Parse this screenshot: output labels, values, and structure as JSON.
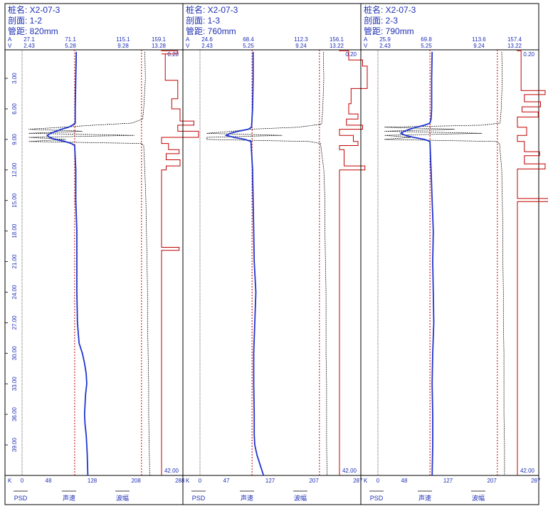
{
  "labels": {
    "pile_prefix": "桩名:",
    "section_prefix": "剖面:",
    "spacing_prefix": "管距:",
    "amp_axis_letter": "A",
    "vel_axis_letter": "V",
    "k_letter": "K",
    "legend_psd": "PSD",
    "legend_velocity": "声速",
    "legend_amplitude": "波幅"
  },
  "depth_ticks": [
    "3.00",
    "6.00",
    "9.00",
    "12.00",
    "15.00",
    "18.00",
    "21.00",
    "24.00",
    "27.00",
    "30.00",
    "33.00",
    "36.00",
    "39.00"
  ],
  "depth_ticks_value": [
    3,
    6,
    9,
    12,
    15,
    18,
    21,
    24,
    27,
    30,
    33,
    36,
    39
  ],
  "colors": {
    "velocity": "#1f35d0",
    "amplitude": "#000000",
    "psd": "#c00000",
    "critical": "#c00000",
    "text": "#1e2fb4",
    "frame": "#000000"
  },
  "chart_data": [
    {
      "type": "line",
      "pile": "X2-07-3",
      "section": "1-2",
      "spacing": "820mm",
      "amp_ticks": [
        "27.1",
        "71.1",
        "115.1",
        "159.1"
      ],
      "vel_ticks": [
        "2.43",
        "5.28",
        "9.28",
        "13.28"
      ],
      "k_ticks": [
        "0",
        "48",
        "128",
        "208",
        "288"
      ],
      "top_depth": "0.20",
      "bottom_depth": "42.00",
      "depth_range": [
        0.2,
        42.0
      ],
      "velocity_critical_k": 96,
      "amplitude_critical_k": 218,
      "velocity": [
        [
          0.4,
          99
        ],
        [
          3,
          98
        ],
        [
          6,
          97
        ],
        [
          7.4,
          97
        ],
        [
          7.6,
          92
        ],
        [
          7.8,
          85
        ],
        [
          8.0,
          72
        ],
        [
          8.2,
          62
        ],
        [
          8.4,
          52
        ],
        [
          8.6,
          46
        ],
        [
          8.8,
          50
        ],
        [
          9.0,
          60
        ],
        [
          9.2,
          78
        ],
        [
          9.4,
          90
        ],
        [
          9.6,
          96
        ],
        [
          12,
          98
        ],
        [
          15,
          98
        ],
        [
          18,
          100
        ],
        [
          21,
          100
        ],
        [
          24,
          100
        ],
        [
          27,
          101
        ],
        [
          29,
          104
        ],
        [
          30,
          110
        ],
        [
          31,
          114
        ],
        [
          32,
          117
        ],
        [
          33,
          118
        ],
        [
          34,
          116
        ],
        [
          35,
          115
        ],
        [
          36,
          114
        ],
        [
          37,
          115
        ],
        [
          38,
          117
        ],
        [
          39,
          118
        ],
        [
          40,
          119
        ],
        [
          42,
          120
        ]
      ],
      "amplitude": [
        [
          0.4,
          224
        ],
        [
          3,
          225
        ],
        [
          6,
          222
        ],
        [
          7,
          220
        ],
        [
          7.4,
          200
        ],
        [
          7.6,
          130
        ],
        [
          7.8,
          75
        ],
        [
          8.0,
          12
        ],
        [
          8.2,
          110
        ],
        [
          8.4,
          12
        ],
        [
          8.6,
          205
        ],
        [
          8.8,
          12
        ],
        [
          9.0,
          80
        ],
        [
          9.2,
          12
        ],
        [
          9.4,
          218
        ],
        [
          9.6,
          222
        ],
        [
          12,
          224
        ],
        [
          15,
          226
        ],
        [
          18,
          227
        ],
        [
          21,
          228
        ],
        [
          24,
          229
        ],
        [
          27,
          229
        ],
        [
          30,
          230
        ],
        [
          33,
          231
        ],
        [
          36,
          231
        ],
        [
          39,
          232
        ],
        [
          42,
          233
        ]
      ],
      "psd": [
        [
          0.2,
          0
        ],
        [
          0.3,
          0
        ],
        [
          0.3,
          35
        ],
        [
          0.6,
          35
        ],
        [
          0.6,
          0
        ],
        [
          0.6,
          8
        ],
        [
          3.2,
          8
        ],
        [
          3.2,
          35
        ],
        [
          5.0,
          35
        ],
        [
          5.0,
          22
        ],
        [
          6.0,
          22
        ],
        [
          6.0,
          40
        ],
        [
          7.2,
          40
        ],
        [
          7.2,
          70
        ],
        [
          7.6,
          70
        ],
        [
          7.6,
          35
        ],
        [
          8.2,
          35
        ],
        [
          8.2,
          80
        ],
        [
          8.8,
          80
        ],
        [
          8.8,
          0
        ],
        [
          9.4,
          0
        ],
        [
          9.4,
          15
        ],
        [
          10.0,
          15
        ],
        [
          10.0,
          38
        ],
        [
          10.4,
          38
        ],
        [
          10.4,
          10
        ],
        [
          11.0,
          10
        ],
        [
          11.0,
          40
        ],
        [
          11.6,
          40
        ],
        [
          11.6,
          10
        ],
        [
          12.0,
          10
        ],
        [
          12.0,
          0
        ],
        [
          19.6,
          0
        ],
        [
          19.6,
          38
        ],
        [
          19.9,
          38
        ],
        [
          19.9,
          0
        ],
        [
          42,
          0
        ]
      ]
    },
    {
      "type": "line",
      "pile": "X2-07-3",
      "section": "1-3",
      "spacing": "760mm",
      "amp_ticks": [
        "24.6",
        "68.4",
        "112.3",
        "156.1"
      ],
      "vel_ticks": [
        "2.43",
        "5.25",
        "9.24",
        "13.22"
      ],
      "k_ticks": [
        "0",
        "47",
        "127",
        "207",
        "287"
      ],
      "top_depth": "0.20",
      "bottom_depth": "42.00",
      "depth_range": [
        0.2,
        42.0
      ],
      "velocity_critical_k": 95,
      "amplitude_critical_k": 218,
      "velocity": [
        [
          0.4,
          97
        ],
        [
          3,
          97
        ],
        [
          6,
          96
        ],
        [
          7.8,
          94
        ],
        [
          8.0,
          88
        ],
        [
          8.2,
          70
        ],
        [
          8.4,
          55
        ],
        [
          8.6,
          48
        ],
        [
          8.8,
          62
        ],
        [
          9.0,
          82
        ],
        [
          9.2,
          93
        ],
        [
          12,
          96
        ],
        [
          15,
          97
        ],
        [
          18,
          98
        ],
        [
          21,
          99
        ],
        [
          24,
          102
        ],
        [
          27,
          100
        ],
        [
          30,
          98
        ],
        [
          33,
          98
        ],
        [
          36,
          99
        ],
        [
          38,
          99
        ],
        [
          39,
          100
        ],
        [
          40,
          104
        ],
        [
          41,
          110
        ],
        [
          42,
          116
        ]
      ],
      "amplitude": [
        [
          0.4,
          225
        ],
        [
          3,
          226
        ],
        [
          6,
          224
        ],
        [
          7.5,
          222
        ],
        [
          7.8,
          180
        ],
        [
          8.0,
          90
        ],
        [
          8.2,
          60
        ],
        [
          8.4,
          12
        ],
        [
          8.6,
          150
        ],
        [
          8.8,
          12
        ],
        [
          9.0,
          12
        ],
        [
          9.2,
          200
        ],
        [
          9.4,
          220
        ],
        [
          12,
          226
        ],
        [
          15,
          228
        ],
        [
          18,
          228
        ],
        [
          21,
          229
        ],
        [
          24,
          230
        ],
        [
          27,
          230
        ],
        [
          30,
          230
        ],
        [
          33,
          231
        ],
        [
          36,
          231
        ],
        [
          39,
          231
        ],
        [
          42,
          232
        ]
      ],
      "psd": [
        [
          0.2,
          0
        ],
        [
          0.3,
          0
        ],
        [
          0.3,
          20
        ],
        [
          1.2,
          20
        ],
        [
          1.2,
          50
        ],
        [
          1.8,
          50
        ],
        [
          1.8,
          60
        ],
        [
          4.0,
          60
        ],
        [
          4.0,
          25
        ],
        [
          5.5,
          25
        ],
        [
          5.5,
          20
        ],
        [
          6.5,
          20
        ],
        [
          6.5,
          40
        ],
        [
          7.0,
          40
        ],
        [
          7.0,
          15
        ],
        [
          7.6,
          15
        ],
        [
          7.6,
          50
        ],
        [
          8.0,
          50
        ],
        [
          8.0,
          0
        ],
        [
          8.6,
          0
        ],
        [
          8.6,
          30
        ],
        [
          9.2,
          30
        ],
        [
          9.2,
          40
        ],
        [
          9.6,
          40
        ],
        [
          9.6,
          0
        ],
        [
          10.0,
          0
        ],
        [
          10.0,
          10
        ],
        [
          11.6,
          10
        ],
        [
          11.6,
          55
        ],
        [
          12.0,
          55
        ],
        [
          12.0,
          0
        ],
        [
          42,
          0
        ]
      ]
    },
    {
      "type": "line",
      "pile": "X2-07-3",
      "section": "2-3",
      "spacing": "790mm",
      "amp_ticks": [
        "25.9",
        "69.8",
        "113.6",
        "157.4"
      ],
      "vel_ticks": [
        "2.43",
        "5.25",
        "9.24",
        "13.22"
      ],
      "k_ticks": [
        "0",
        "48",
        "127",
        "207",
        "287"
      ],
      "top_depth": "0.20",
      "bottom_depth": "42.00",
      "depth_range": [
        0.2,
        42.0
      ],
      "velocity_critical_k": 95,
      "amplitude_critical_k": 218,
      "velocity": [
        [
          0.4,
          99
        ],
        [
          3,
          98
        ],
        [
          6,
          98
        ],
        [
          7.0,
          97
        ],
        [
          7.4,
          95
        ],
        [
          7.6,
          85
        ],
        [
          7.8,
          70
        ],
        [
          8.0,
          58
        ],
        [
          8.2,
          48
        ],
        [
          8.4,
          42
        ],
        [
          8.6,
          50
        ],
        [
          8.8,
          65
        ],
        [
          9.0,
          85
        ],
        [
          9.2,
          95
        ],
        [
          12,
          97
        ],
        [
          15,
          99
        ],
        [
          18,
          101
        ],
        [
          21,
          100
        ],
        [
          24,
          101
        ],
        [
          27,
          102
        ],
        [
          30,
          100
        ],
        [
          33,
          99
        ],
        [
          36,
          100
        ],
        [
          39,
          100
        ],
        [
          42,
          99
        ]
      ],
      "amplitude": [
        [
          0.4,
          226
        ],
        [
          3,
          227
        ],
        [
          6,
          225
        ],
        [
          7.4,
          223
        ],
        [
          7.6,
          190
        ],
        [
          7.8,
          12
        ],
        [
          8.0,
          140
        ],
        [
          8.2,
          12
        ],
        [
          8.4,
          190
        ],
        [
          8.6,
          12
        ],
        [
          8.8,
          60
        ],
        [
          9.0,
          12
        ],
        [
          9.2,
          215
        ],
        [
          9.4,
          222
        ],
        [
          12,
          226
        ],
        [
          15,
          227
        ],
        [
          18,
          228
        ],
        [
          21,
          228
        ],
        [
          24,
          229
        ],
        [
          27,
          229
        ],
        [
          30,
          230
        ],
        [
          33,
          230
        ],
        [
          36,
          230
        ],
        [
          39,
          231
        ],
        [
          42,
          231
        ]
      ],
      "psd": [
        [
          0.2,
          0
        ],
        [
          0.3,
          0
        ],
        [
          0.3,
          8
        ],
        [
          4.2,
          8
        ],
        [
          4.2,
          60
        ],
        [
          4.6,
          60
        ],
        [
          4.6,
          15
        ],
        [
          5.3,
          15
        ],
        [
          5.3,
          50
        ],
        [
          5.8,
          50
        ],
        [
          5.8,
          10
        ],
        [
          6.3,
          10
        ],
        [
          6.3,
          45
        ],
        [
          6.8,
          45
        ],
        [
          6.8,
          0
        ],
        [
          7.8,
          0
        ],
        [
          7.8,
          20
        ],
        [
          8.6,
          20
        ],
        [
          8.6,
          0
        ],
        [
          9.2,
          0
        ],
        [
          9.2,
          15
        ],
        [
          10.2,
          15
        ],
        [
          10.2,
          48
        ],
        [
          10.6,
          48
        ],
        [
          10.6,
          15
        ],
        [
          11.4,
          15
        ],
        [
          11.4,
          60
        ],
        [
          11.9,
          60
        ],
        [
          11.9,
          0
        ],
        [
          14.8,
          0
        ],
        [
          14.8,
          70
        ],
        [
          15.1,
          70
        ],
        [
          15.1,
          0
        ],
        [
          42,
          0
        ]
      ]
    }
  ]
}
